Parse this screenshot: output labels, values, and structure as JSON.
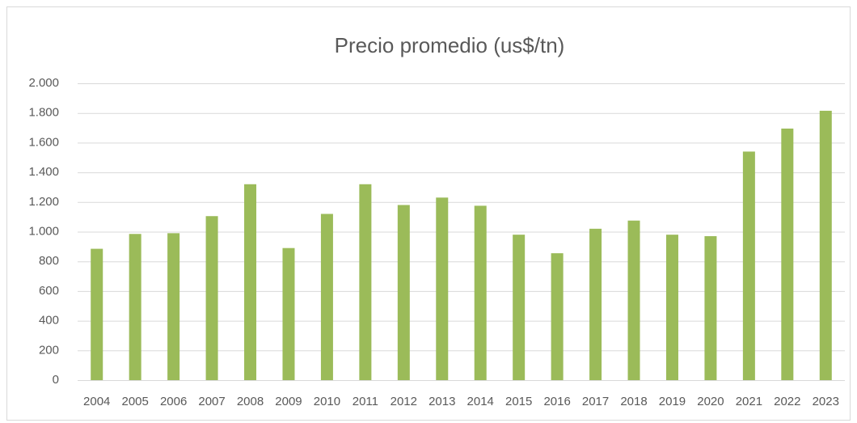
{
  "chart_data": {
    "type": "bar",
    "title": "Precio promedio (us$/tn)",
    "categories": [
      "2004",
      "2005",
      "2006",
      "2007",
      "2008",
      "2009",
      "2010",
      "2011",
      "2012",
      "2013",
      "2014",
      "2015",
      "2016",
      "2017",
      "2018",
      "2019",
      "2020",
      "2021",
      "2022",
      "2023"
    ],
    "values": [
      885,
      985,
      990,
      1105,
      1320,
      890,
      1120,
      1320,
      1180,
      1230,
      1175,
      980,
      855,
      1020,
      1075,
      980,
      970,
      1540,
      1695,
      1815
    ],
    "color": "#9bbb59",
    "ylim": [
      0,
      2000
    ],
    "yticks": [
      0,
      200,
      400,
      600,
      800,
      {
        "value": 1000,
        "label": "1.000"
      },
      {
        "value": 1200,
        "label": "1.200"
      },
      {
        "value": 1400,
        "label": "1.400"
      },
      {
        "value": 1600,
        "label": "1.600"
      },
      {
        "value": 1800,
        "label": "1.800"
      },
      {
        "value": 2000,
        "label": "2.000"
      }
    ],
    "grid": true
  }
}
